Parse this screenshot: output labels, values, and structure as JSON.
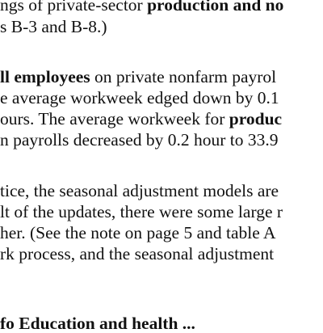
{
  "paragraph_1": {
    "line_1": {
      "pre": "ngs of private-sector ",
      "bold": "production and no"
    },
    "line_2": {
      "text": "s B-3 and B-8.)"
    }
  },
  "paragraph_2": {
    "line_1": {
      "bold": "ll employees",
      "post": " on private nonfarm payrol"
    },
    "line_2": {
      "text": "e average workweek edged down by 0.1"
    },
    "line_3": {
      "pre": "ours. The average workweek for ",
      "bold": "produc"
    },
    "line_4": {
      "text": "n payrolls decreased by 0.2 hour to 33.9"
    }
  },
  "paragraph_3": {
    "line_1": {
      "text": "tice, the seasonal adjustment models are"
    },
    "line_2": {
      "text": "lt of the updates, there were some large r"
    },
    "line_3": {
      "text": "her. (See the note on page 5 and table A"
    },
    "line_4": {
      "text": "rk process, and the seasonal adjustment"
    }
  },
  "paragraph_4": {
    "line_1": {
      "bold": "fo   Education and health  ..."
    }
  }
}
